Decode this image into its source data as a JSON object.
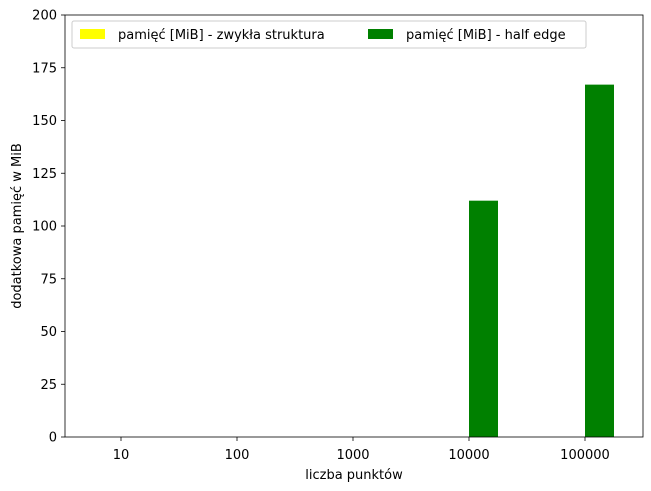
{
  "chart_data": {
    "type": "bar",
    "categories": [
      "10",
      "100",
      "1000",
      "10000",
      "100000"
    ],
    "xlabel": "liczba punktów",
    "ylabel": "dodatkowa pamięć w MiB",
    "ylim": [
      0,
      200
    ],
    "yticks": [
      "0",
      "25",
      "50",
      "75",
      "100",
      "125",
      "150",
      "175",
      "200"
    ],
    "grid": false,
    "legend_position": "top",
    "series": [
      {
        "name": "pamięć [MiB] - zwykła struktura",
        "color": "#ffff00",
        "values": [
          0,
          0,
          0,
          0,
          0
        ]
      },
      {
        "name": "pamięć [MiB] - half edge",
        "color": "#008000",
        "values": [
          0,
          0,
          0,
          112,
          167
        ]
      }
    ]
  }
}
